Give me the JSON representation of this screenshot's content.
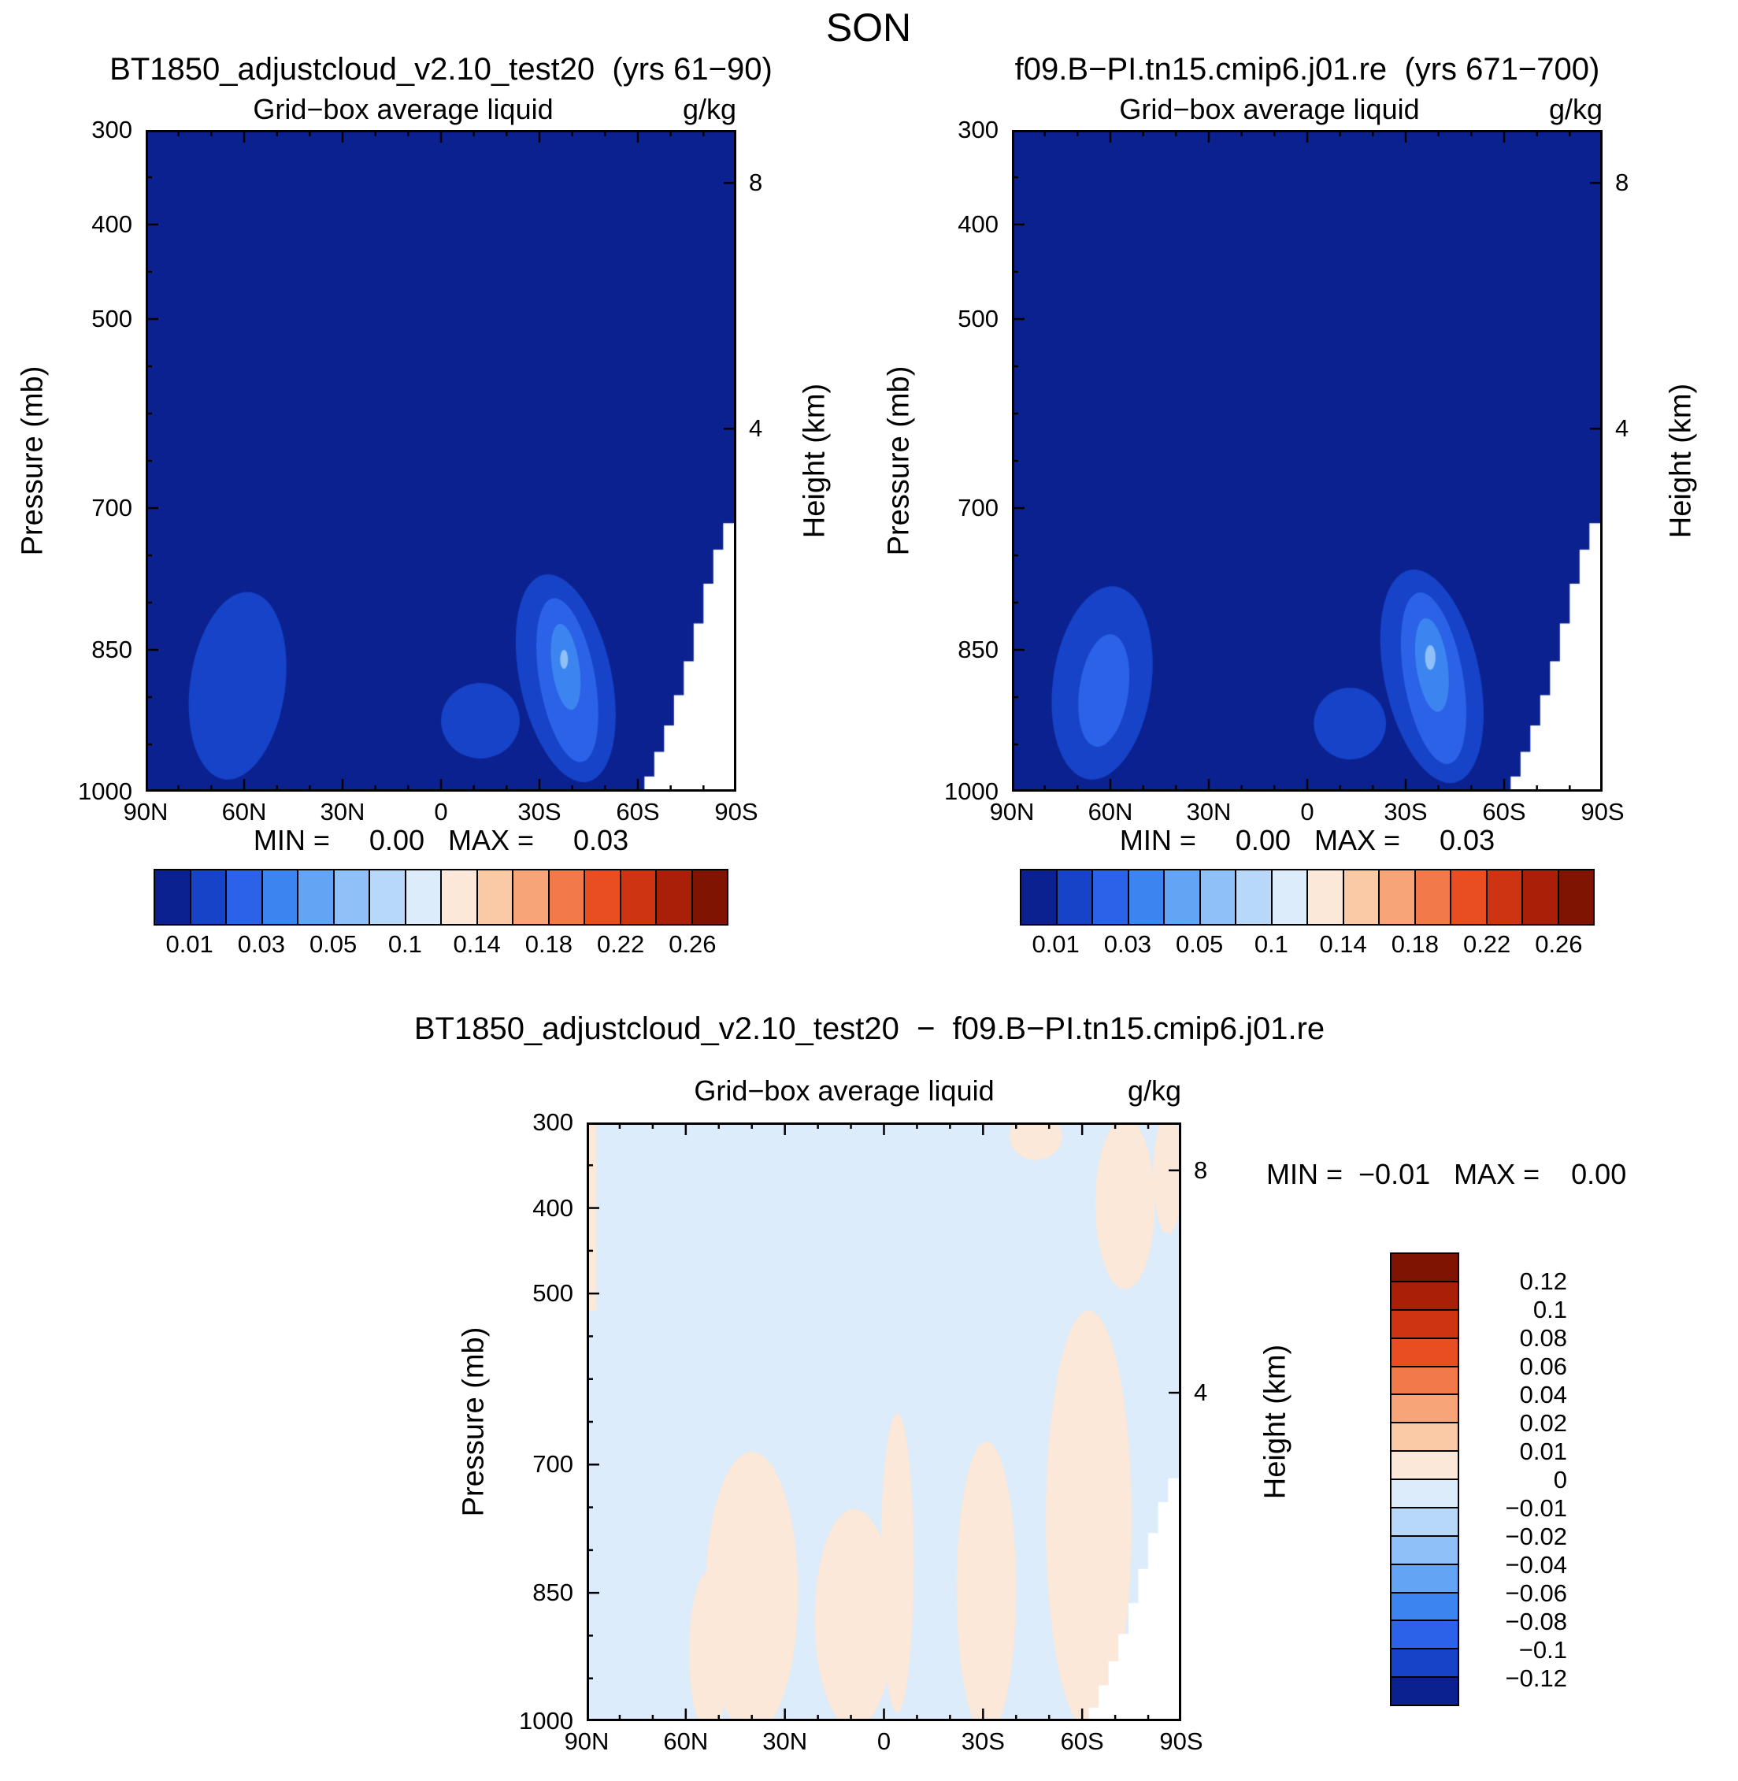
{
  "page_title": "SON",
  "colors": {
    "palette16": [
      "#0b2190",
      "#1643c8",
      "#2b62e8",
      "#3c85f0",
      "#64a4f4",
      "#8fc0f8",
      "#b8d8fa",
      "#dcecfb",
      "#fce8d8",
      "#fac9a6",
      "#f7a478",
      "#f2794a",
      "#e84e22",
      "#ce3412",
      "#aa1f08",
      "#7f1402"
    ],
    "frame": "#000000",
    "topography_fill": "#ffffff",
    "page_background": "#ffffff"
  },
  "chart_data": [
    {
      "id": "case1",
      "type": "heatmap",
      "dataset_title": "BT1850_adjustcloud_v2.10_test20  (yrs 61−90)",
      "field_title": "Grid−box average liquid",
      "units": "g/kg",
      "ylabel": "Pressure (mb)",
      "y2label": "Height (km)",
      "min_max": "MIN =     0.00   MAX =     0.03",
      "x_axis": {
        "range": [
          90,
          -90
        ],
        "tick_values": [
          90,
          60,
          30,
          0,
          -30,
          -60,
          -90
        ],
        "tick_labels": [
          "90N",
          "60N",
          "30N",
          "0",
          "30S",
          "60S",
          "90S"
        ],
        "minor_step": 10
      },
      "y_axis": {
        "range": [
          300,
          1000
        ],
        "tick_values": [
          300,
          400,
          500,
          700,
          850,
          1000
        ],
        "tick_labels": [
          "300",
          "400",
          "500",
          "700",
          "850",
          "1000"
        ],
        "minor": [
          350,
          450,
          550,
          600,
          650,
          750,
          800,
          900,
          950
        ]
      },
      "y2_axis": {
        "ticks": [
          {
            "label": "8",
            "p": 356
          },
          {
            "label": "4",
            "p": 616
          }
        ]
      },
      "background_color": 0,
      "features": [
        {
          "shape": "ellipse",
          "lat": 62,
          "p": 888,
          "rlat": 14.5,
          "rp": 100,
          "rot": 8,
          "color": 1
        },
        {
          "shape": "ellipse",
          "lat": -12,
          "p": 925,
          "rlat": 12,
          "rp": 40,
          "rot": 0,
          "color": 1
        },
        {
          "shape": "ellipse",
          "lat": -38,
          "p": 880,
          "rlat": 14,
          "rp": 112,
          "rot": -12,
          "color": 1
        },
        {
          "shape": "ellipse",
          "lat": -38.5,
          "p": 882,
          "rlat": 8.5,
          "rp": 88,
          "rot": -10,
          "color": 2
        },
        {
          "shape": "ellipse",
          "lat": -38,
          "p": 868,
          "rlat": 4.2,
          "rp": 46,
          "rot": -8,
          "color": 3
        },
        {
          "shape": "ellipse",
          "lat": -37.5,
          "p": 860,
          "rlat": 1.2,
          "rp": 10,
          "rot": 0,
          "color": 5
        }
      ],
      "topography": [
        [
          -62,
          1000
        ],
        [
          -62,
          984
        ],
        [
          -65,
          984
        ],
        [
          -65,
          958
        ],
        [
          -68,
          958
        ],
        [
          -68,
          930
        ],
        [
          -71,
          930
        ],
        [
          -71,
          898
        ],
        [
          -74,
          898
        ],
        [
          -74,
          862
        ],
        [
          -77,
          862
        ],
        [
          -77,
          822
        ],
        [
          -80,
          822
        ],
        [
          -80,
          780
        ],
        [
          -83,
          780
        ],
        [
          -83,
          744
        ],
        [
          -86,
          744
        ],
        [
          -86,
          716
        ],
        [
          -90,
          716
        ],
        [
          -90,
          1000
        ]
      ],
      "colorbar": {
        "orientation": "horizontal",
        "cell_colors": [
          0,
          1,
          2,
          3,
          4,
          5,
          6,
          7,
          8,
          9,
          10,
          11,
          12,
          13,
          14,
          15
        ],
        "labels": [
          "0.01",
          "0.03",
          "0.05",
          "0.1",
          "0.14",
          "0.18",
          "0.22",
          "0.26"
        ]
      }
    },
    {
      "id": "case2",
      "type": "heatmap",
      "dataset_title": "f09.B−PI.tn15.cmip6.j01.re  (yrs 671−700)",
      "field_title": "Grid−box average liquid",
      "units": "g/kg",
      "ylabel": "Pressure (mb)",
      "y2label": "Height (km)",
      "min_max": "MIN =     0.00   MAX =     0.03",
      "x_axis": {
        "range": [
          90,
          -90
        ],
        "tick_values": [
          90,
          60,
          30,
          0,
          -30,
          -60,
          -90
        ],
        "tick_labels": [
          "90N",
          "60N",
          "30N",
          "0",
          "30S",
          "60S",
          "90S"
        ],
        "minor_step": 10
      },
      "y_axis": {
        "range": [
          300,
          1000
        ],
        "tick_values": [
          300,
          400,
          500,
          700,
          850,
          1000
        ],
        "tick_labels": [
          "300",
          "400",
          "500",
          "700",
          "850",
          "1000"
        ],
        "minor": [
          350,
          450,
          550,
          600,
          650,
          750,
          800,
          900,
          950
        ]
      },
      "y2_axis": {
        "ticks": [
          {
            "label": "8",
            "p": 356
          },
          {
            "label": "4",
            "p": 616
          }
        ]
      },
      "background_color": 0,
      "features": [
        {
          "shape": "ellipse",
          "lat": 62.5,
          "p": 885,
          "rlat": 15,
          "rp": 103,
          "rot": 8,
          "color": 1
        },
        {
          "shape": "ellipse",
          "lat": 62,
          "p": 893,
          "rlat": 7.5,
          "rp": 60,
          "rot": 8,
          "color": 2
        },
        {
          "shape": "ellipse",
          "lat": -13,
          "p": 928,
          "rlat": 11,
          "rp": 38,
          "rot": 0,
          "color": 1
        },
        {
          "shape": "ellipse",
          "lat": -38,
          "p": 878,
          "rlat": 14.5,
          "rp": 115,
          "rot": -12,
          "color": 1
        },
        {
          "shape": "ellipse",
          "lat": -38.5,
          "p": 880,
          "rlat": 9,
          "rp": 92,
          "rot": -10,
          "color": 2
        },
        {
          "shape": "ellipse",
          "lat": -38,
          "p": 866,
          "rlat": 4.8,
          "rp": 50,
          "rot": -8,
          "color": 3
        },
        {
          "shape": "ellipse",
          "lat": -37.5,
          "p": 858,
          "rlat": 1.6,
          "rp": 13,
          "rot": 0,
          "color": 5
        }
      ],
      "topography": [
        [
          -62,
          1000
        ],
        [
          -62,
          984
        ],
        [
          -65,
          984
        ],
        [
          -65,
          958
        ],
        [
          -68,
          958
        ],
        [
          -68,
          930
        ],
        [
          -71,
          930
        ],
        [
          -71,
          898
        ],
        [
          -74,
          898
        ],
        [
          -74,
          862
        ],
        [
          -77,
          862
        ],
        [
          -77,
          822
        ],
        [
          -80,
          822
        ],
        [
          -80,
          780
        ],
        [
          -83,
          780
        ],
        [
          -83,
          744
        ],
        [
          -86,
          744
        ],
        [
          -86,
          716
        ],
        [
          -90,
          716
        ],
        [
          -90,
          1000
        ]
      ],
      "colorbar": {
        "orientation": "horizontal",
        "cell_colors": [
          0,
          1,
          2,
          3,
          4,
          5,
          6,
          7,
          8,
          9,
          10,
          11,
          12,
          13,
          14,
          15
        ],
        "labels": [
          "0.01",
          "0.03",
          "0.05",
          "0.1",
          "0.14",
          "0.18",
          "0.22",
          "0.26"
        ]
      }
    },
    {
      "id": "diff",
      "type": "heatmap",
      "dataset_title": "BT1850_adjustcloud_v2.10_test20  −  f09.B−PI.tn15.cmip6.j01.re",
      "field_title": "Grid−box average liquid",
      "units": "g/kg",
      "ylabel": "Pressure (mb)",
      "y2label": "Height (km)",
      "min_max": "MIN =  −0.01   MAX =    0.00",
      "x_axis": {
        "range": [
          90,
          -90
        ],
        "tick_values": [
          90,
          60,
          30,
          0,
          -30,
          -60,
          -90
        ],
        "tick_labels": [
          "90N",
          "60N",
          "30N",
          "0",
          "30S",
          "60S",
          "90S"
        ],
        "minor_step": 10
      },
      "y_axis": {
        "range": [
          300,
          1000
        ],
        "tick_values": [
          300,
          400,
          500,
          700,
          850,
          1000
        ],
        "tick_labels": [
          "300",
          "400",
          "500",
          "700",
          "850",
          "1000"
        ],
        "minor": [
          350,
          450,
          550,
          600,
          650,
          750,
          800,
          900,
          950
        ]
      },
      "y2_axis": {
        "ticks": [
          {
            "label": "8",
            "p": 356
          },
          {
            "label": "4",
            "p": 616
          }
        ]
      },
      "background_color": 7,
      "features": [
        {
          "shape": "polygon",
          "points": [
            [
              90,
              300
            ],
            [
              87,
              300
            ],
            [
              87,
              520
            ],
            [
              90,
              520
            ]
          ],
          "color": 8
        },
        {
          "shape": "ellipse",
          "lat": 40,
          "p": 850,
          "rlat": 14,
          "rp": 165,
          "rot": 0,
          "color": 8
        },
        {
          "shape": "ellipse",
          "lat": 53,
          "p": 920,
          "rlat": 6,
          "rp": 95,
          "rot": 0,
          "color": 8
        },
        {
          "shape": "ellipse",
          "lat": 9,
          "p": 880,
          "rlat": 12,
          "rp": 128,
          "rot": 0,
          "color": 8
        },
        {
          "shape": "ellipse",
          "lat": -4,
          "p": 815,
          "rlat": 5,
          "rp": 175,
          "rot": 0,
          "color": 8
        },
        {
          "shape": "ellipse",
          "lat": -31,
          "p": 845,
          "rlat": 9,
          "rp": 172,
          "rot": 0,
          "color": 8
        },
        {
          "shape": "ellipse",
          "lat": -62,
          "p": 765,
          "rlat": 13,
          "rp": 245,
          "rot": 0,
          "color": 8
        },
        {
          "shape": "ellipse",
          "lat": -73,
          "p": 395,
          "rlat": 9,
          "rp": 100,
          "rot": 0,
          "color": 8
        },
        {
          "shape": "ellipse",
          "lat": -46,
          "p": 316,
          "rlat": 8,
          "rp": 28,
          "rot": 0,
          "color": 8
        },
        {
          "shape": "ellipse",
          "lat": -86,
          "p": 360,
          "rlat": 4.5,
          "rp": 70,
          "rot": 0,
          "color": 8
        }
      ],
      "topography": [
        [
          -62,
          1000
        ],
        [
          -62,
          984
        ],
        [
          -65,
          984
        ],
        [
          -65,
          958
        ],
        [
          -68,
          958
        ],
        [
          -68,
          930
        ],
        [
          -71,
          930
        ],
        [
          -71,
          898
        ],
        [
          -74,
          898
        ],
        [
          -74,
          862
        ],
        [
          -77,
          862
        ],
        [
          -77,
          822
        ],
        [
          -80,
          822
        ],
        [
          -80,
          780
        ],
        [
          -83,
          780
        ],
        [
          -83,
          744
        ],
        [
          -86,
          744
        ],
        [
          -86,
          716
        ],
        [
          -90,
          716
        ],
        [
          -90,
          1000
        ]
      ],
      "colorbar": {
        "orientation": "vertical",
        "cell_colors": [
          15,
          14,
          13,
          12,
          11,
          10,
          9,
          8,
          7,
          6,
          5,
          4,
          3,
          2,
          1,
          0
        ],
        "labels": [
          "0.12",
          "0.1",
          "0.08",
          "0.06",
          "0.04",
          "0.02",
          "0.01",
          "0",
          "−0.01",
          "−0.02",
          "−0.04",
          "−0.06",
          "−0.08",
          "−0.1",
          "−0.12"
        ]
      }
    }
  ]
}
